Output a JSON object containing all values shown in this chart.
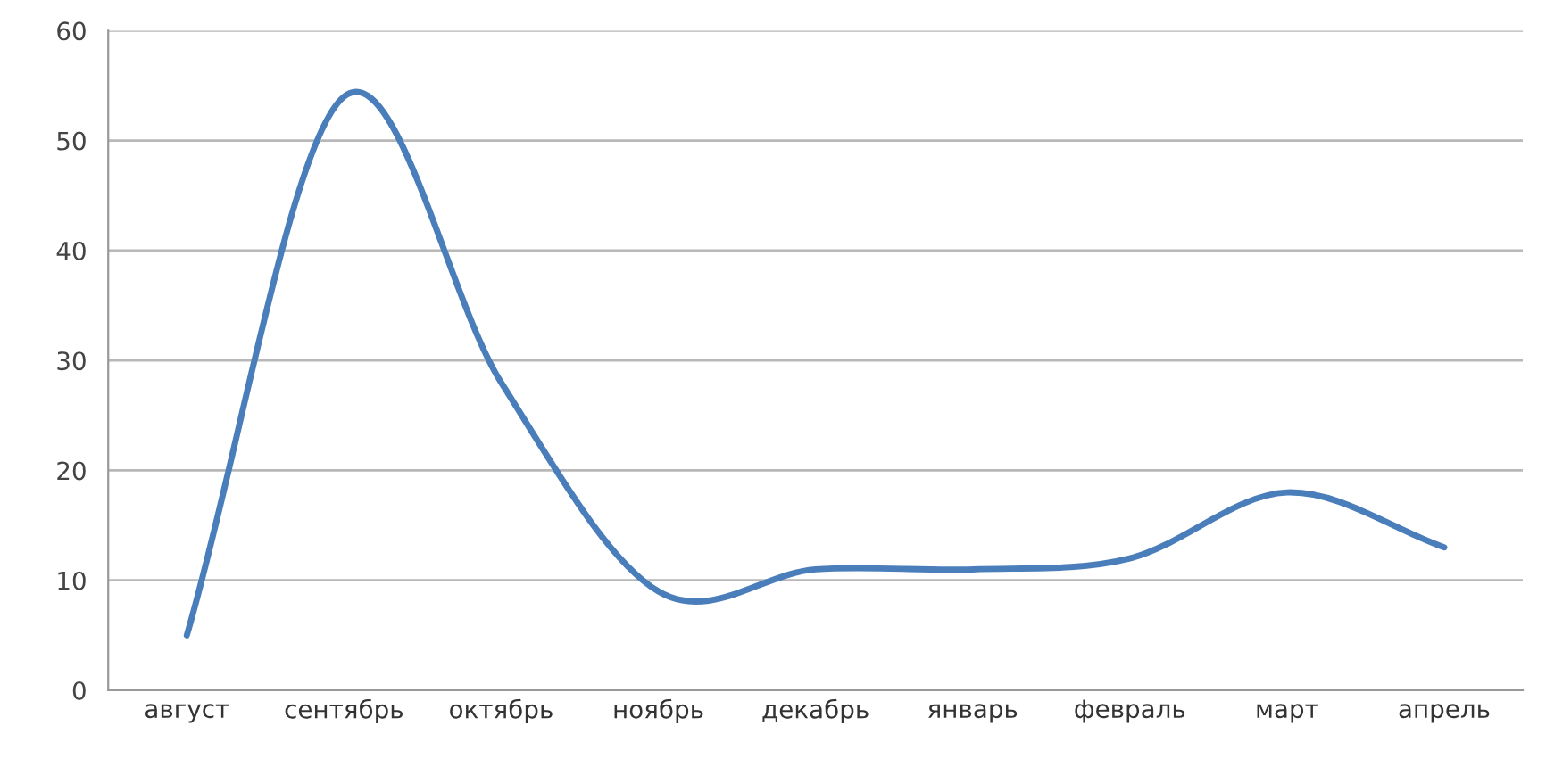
{
  "chart_data": {
    "type": "line",
    "categories": [
      "август",
      "сентябрь",
      "октябрь",
      "ноябрь",
      "декабрь",
      "январь",
      "февраль",
      "март",
      "апрель"
    ],
    "series": [
      {
        "color": "#4a7ebb",
        "values": [
          5,
          54,
          28,
          9,
          11,
          11,
          12,
          18,
          13
        ]
      }
    ],
    "ylim": [
      0,
      60
    ],
    "yticks": [
      0,
      10,
      20,
      30,
      40,
      50,
      60
    ],
    "grid": "y",
    "marker": "none",
    "line_style": "solid"
  }
}
